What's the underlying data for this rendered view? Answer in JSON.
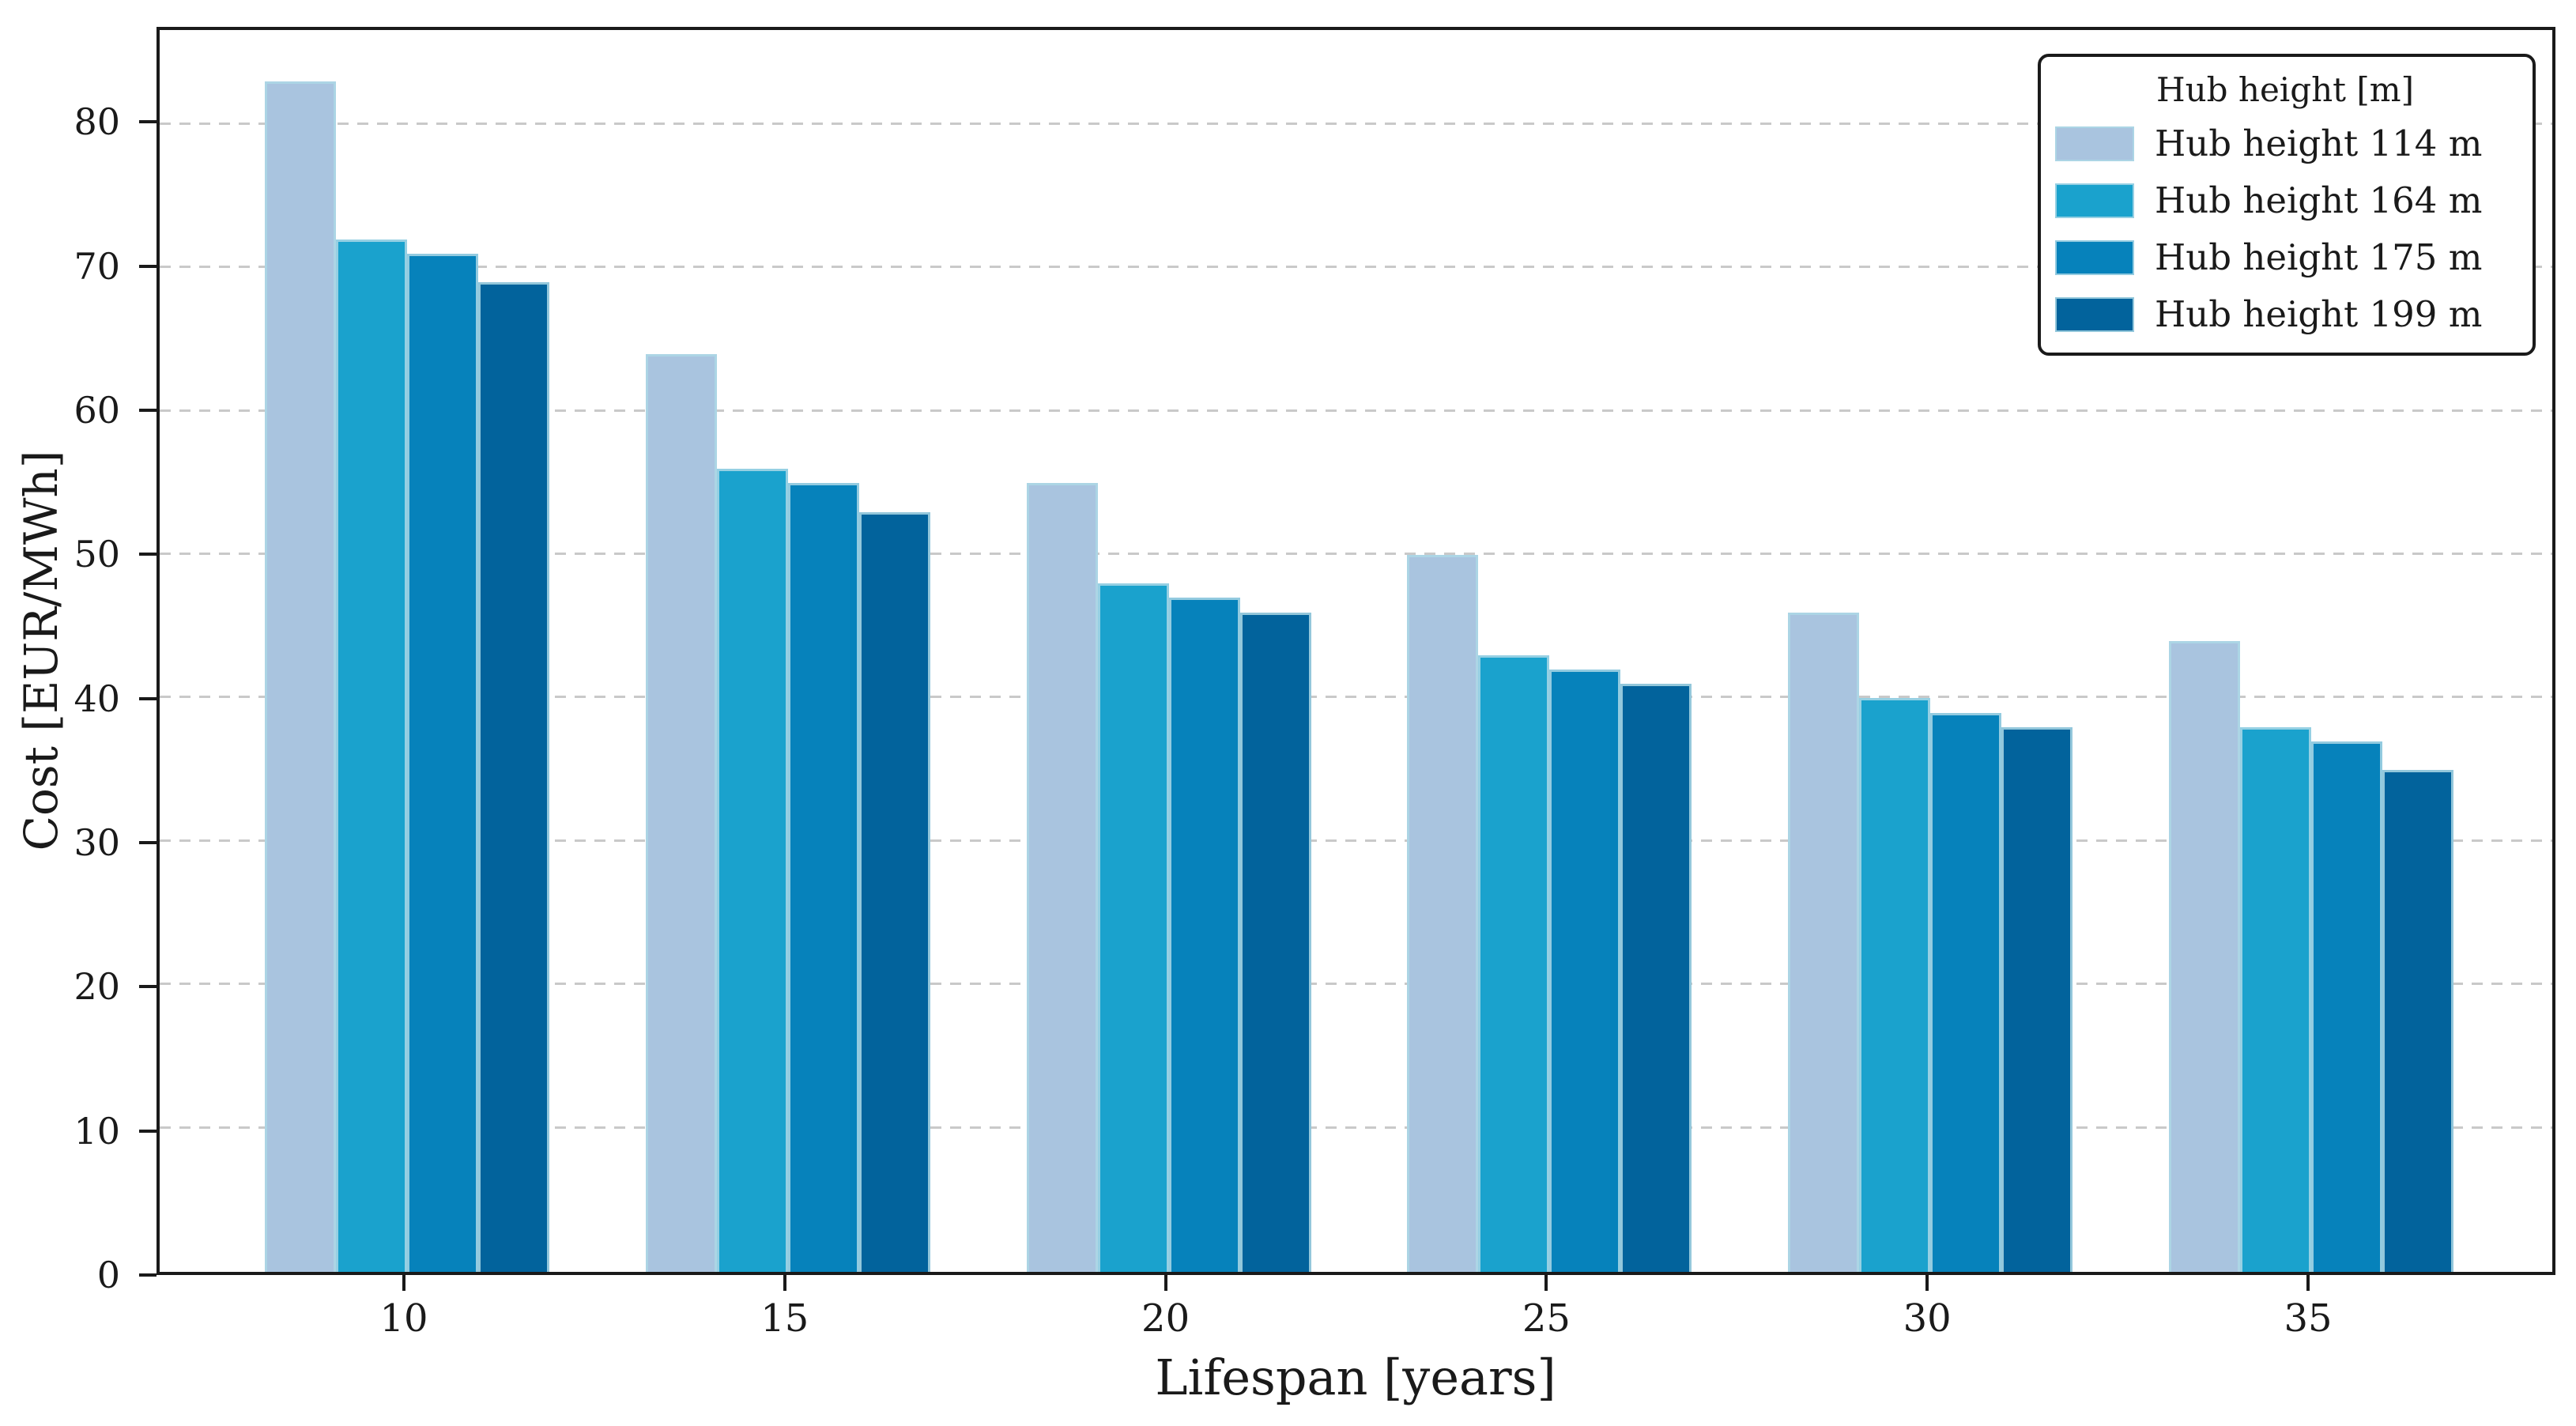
{
  "chart_data": {
    "type": "bar",
    "title": "",
    "categories": [
      "10",
      "15",
      "20",
      "25",
      "30",
      "35"
    ],
    "series": [
      {
        "name": "Hub height 114 m",
        "color": "#a9c4df",
        "values": [
          83,
          64,
          55,
          50,
          46,
          44
        ]
      },
      {
        "name": "Hub height 164 m",
        "color": "#1aa2cd",
        "values": [
          72,
          56,
          48,
          43,
          40,
          38
        ]
      },
      {
        "name": "Hub height 175 m",
        "color": "#0682bb",
        "values": [
          71,
          55,
          47,
          42,
          39,
          37
        ]
      },
      {
        "name": "Hub height 199 m",
        "color": "#02639c",
        "values": [
          69,
          53,
          46,
          41,
          38,
          35
        ]
      }
    ],
    "xlabel": "Lifespan [years]",
    "ylabel": "Cost [EUR/MWh]",
    "ylim": [
      0,
      86.6
    ],
    "yticks": [
      0,
      10,
      20,
      30,
      40,
      50,
      60,
      70,
      80
    ],
    "legend_title": "Hub height [m]",
    "legend_position": "upper right",
    "grid": "horizontal dashed gridlines at each y tick"
  },
  "colors": {
    "gridline": "#c9c9c9",
    "spine": "#1a1a1a",
    "bar_edge": "#add8e6",
    "background": "#ffffff"
  }
}
